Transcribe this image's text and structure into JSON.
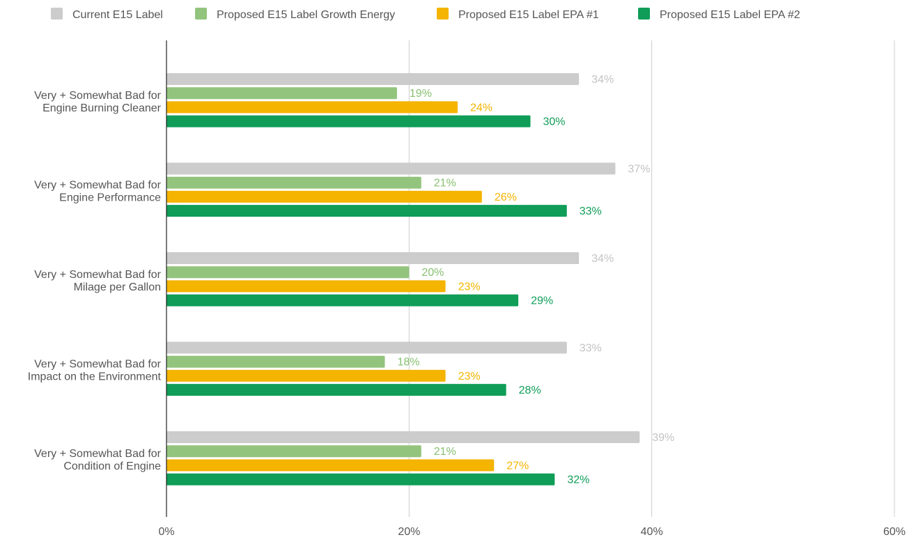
{
  "chart_data": {
    "type": "bar",
    "orientation": "horizontal",
    "title": "",
    "xlabel": "",
    "ylabel": "",
    "xlim": [
      0,
      60
    ],
    "x_ticks": [
      "0%",
      "20%",
      "40%",
      "60%"
    ],
    "x_tick_values": [
      0,
      20,
      40,
      60
    ],
    "grid": "vertical",
    "legend_position": "top",
    "categories": [
      [
        "Very + Somewhat Bad for",
        "Engine Burning Cleaner"
      ],
      [
        "Very + Somewhat Bad for",
        "Engine Performance"
      ],
      [
        "Very + Somewhat Bad for",
        "Milage per Gallon"
      ],
      [
        "Very + Somewhat Bad for",
        "Impact on the Environment"
      ],
      [
        "Very + Somewhat Bad for",
        "Condition of Engine"
      ]
    ],
    "series": [
      {
        "name": "Current E15 Label",
        "color": "#cccccc",
        "label_color": "#c3c3c3",
        "values": [
          34,
          37,
          34,
          33,
          39
        ]
      },
      {
        "name": "Proposed E15 Label Growth Energy",
        "color": "#93c47d",
        "label_color": "#87c070",
        "values": [
          19,
          21,
          20,
          18,
          21
        ]
      },
      {
        "name": "Proposed E15 Label EPA #1",
        "color": "#f4b400",
        "label_color": "#f4b400",
        "values": [
          24,
          26,
          23,
          23,
          27
        ]
      },
      {
        "name": "Proposed E15 Label EPA #2",
        "color": "#0f9d58",
        "label_color": "#0f9d58",
        "values": [
          30,
          33,
          29,
          28,
          32
        ]
      }
    ],
    "value_suffix": "%"
  }
}
